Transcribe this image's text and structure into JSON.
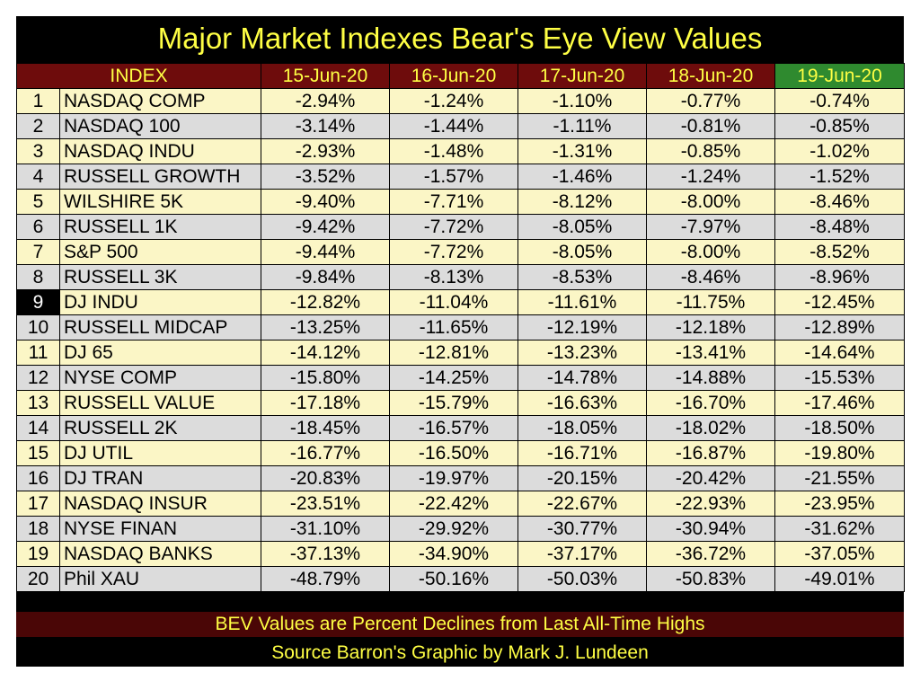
{
  "title": "Major Market Indexes Bear's Eye View Values",
  "headers": [
    "INDEX",
    "15-Jun-20",
    "16-Jun-20",
    "17-Jun-20",
    "18-Jun-20",
    "19-Jun-20"
  ],
  "footer_note": "BEV Values are Percent Declines from Last All-Time Highs",
  "source": "Source Barron's    Graphic by Mark J. Lundeen",
  "colors": {
    "header_bg": "#6e0c0c",
    "highlight_header_bg": "#2f8a2f",
    "text_yellow": "#ffff44",
    "odd_row": "#fbf6c6",
    "even_row": "#dcdcdc"
  },
  "chart_data": {
    "type": "table",
    "columns": [
      "INDEX",
      "15-Jun-20",
      "16-Jun-20",
      "17-Jun-20",
      "18-Jun-20",
      "19-Jun-20"
    ],
    "rows": [
      {
        "rank": "1",
        "name": "NASDAQ COMP",
        "values": [
          "-2.94%",
          "-1.24%",
          "-1.10%",
          "-0.77%",
          "-0.74%"
        ]
      },
      {
        "rank": "2",
        "name": "NASDAQ 100",
        "values": [
          "-3.14%",
          "-1.44%",
          "-1.11%",
          "-0.81%",
          "-0.85%"
        ]
      },
      {
        "rank": "3",
        "name": "NASDAQ INDU",
        "values": [
          "-2.93%",
          "-1.48%",
          "-1.31%",
          "-0.85%",
          "-1.02%"
        ]
      },
      {
        "rank": "4",
        "name": "RUSSELL GROWTH",
        "values": [
          "-3.52%",
          "-1.57%",
          "-1.46%",
          "-1.24%",
          "-1.52%"
        ]
      },
      {
        "rank": "5",
        "name": "WILSHIRE 5K",
        "values": [
          "-9.40%",
          "-7.71%",
          "-8.12%",
          "-8.00%",
          "-8.46%"
        ]
      },
      {
        "rank": "6",
        "name": "RUSSELL 1K",
        "values": [
          "-9.42%",
          "-7.72%",
          "-8.05%",
          "-7.97%",
          "-8.48%"
        ]
      },
      {
        "rank": "7",
        "name": "S&P 500",
        "values": [
          "-9.44%",
          "-7.72%",
          "-8.05%",
          "-8.00%",
          "-8.52%"
        ]
      },
      {
        "rank": "8",
        "name": "RUSSELL 3K",
        "values": [
          "-9.84%",
          "-8.13%",
          "-8.53%",
          "-8.46%",
          "-8.96%"
        ]
      },
      {
        "rank": "9",
        "name": "DJ  INDU",
        "values": [
          "-12.82%",
          "-11.04%",
          "-11.61%",
          "-11.75%",
          "-12.45%"
        ]
      },
      {
        "rank": "10",
        "name": "RUSSELL MIDCAP",
        "values": [
          "-13.25%",
          "-11.65%",
          "-12.19%",
          "-12.18%",
          "-12.89%"
        ]
      },
      {
        "rank": "11",
        "name": "DJ  65",
        "values": [
          "-14.12%",
          "-12.81%",
          "-13.23%",
          "-13.41%",
          "-14.64%"
        ]
      },
      {
        "rank": "12",
        "name": "NYSE COMP",
        "values": [
          "-15.80%",
          "-14.25%",
          "-14.78%",
          "-14.88%",
          "-15.53%"
        ]
      },
      {
        "rank": "13",
        "name": "RUSSELL VALUE",
        "values": [
          "-17.18%",
          "-15.79%",
          "-16.63%",
          "-16.70%",
          "-17.46%"
        ]
      },
      {
        "rank": "14",
        "name": "RUSSELL 2K",
        "values": [
          "-18.45%",
          "-16.57%",
          "-18.05%",
          "-18.02%",
          "-18.50%"
        ]
      },
      {
        "rank": "15",
        "name": "DJ  UTIL",
        "values": [
          "-16.77%",
          "-16.50%",
          "-16.71%",
          "-16.87%",
          "-19.80%"
        ]
      },
      {
        "rank": "16",
        "name": "DJ  TRAN",
        "values": [
          "-20.83%",
          "-19.97%",
          "-20.15%",
          "-20.42%",
          "-21.55%"
        ]
      },
      {
        "rank": "17",
        "name": "NASDAQ INSUR",
        "values": [
          "-23.51%",
          "-22.42%",
          "-22.67%",
          "-22.93%",
          "-23.95%"
        ]
      },
      {
        "rank": "18",
        "name": "NYSE FINAN",
        "values": [
          "-31.10%",
          "-29.92%",
          "-30.77%",
          "-30.94%",
          "-31.62%"
        ]
      },
      {
        "rank": "19",
        "name": "NASDAQ BANKS",
        "values": [
          "-37.13%",
          "-34.90%",
          "-37.17%",
          "-36.72%",
          "-37.05%"
        ]
      },
      {
        "rank": "20",
        "name": "Phil XAU",
        "values": [
          "-48.79%",
          "-50.16%",
          "-50.03%",
          "-50.83%",
          "-49.01%"
        ]
      }
    ],
    "highlighted_rank": "9",
    "highlighted_column": "19-Jun-20"
  }
}
